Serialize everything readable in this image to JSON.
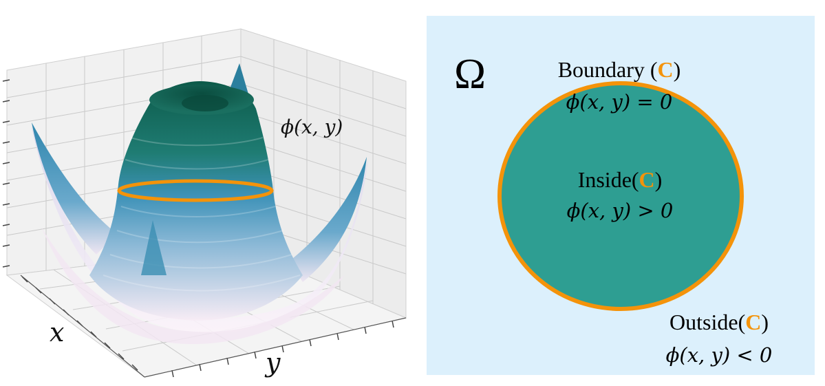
{
  "surface_plot": {
    "function_label": "ϕ(x, y)",
    "x_axis_label": "x",
    "y_axis_label": "y"
  },
  "domain_panel": {
    "domain_symbol": "Ω",
    "curve_symbol": "C",
    "boundary": {
      "prefix": "Boundary (",
      "suffix": ")",
      "condition": "ϕ(x, y) = 0"
    },
    "inside": {
      "prefix": "Inside(",
      "suffix": ")",
      "condition": "ϕ(x, y) > 0"
    },
    "outside": {
      "prefix": "Outside(",
      "suffix": ")",
      "condition": "ϕ(x, y) < 0"
    }
  },
  "colors": {
    "panel_background": "#dcf0fc",
    "region_fill": "#2e9e92",
    "contour": "#f4930a",
    "surface_top": "#0e5d4c",
    "surface_mid": "#3f94b7",
    "surface_base": "#f6eaf4"
  }
}
